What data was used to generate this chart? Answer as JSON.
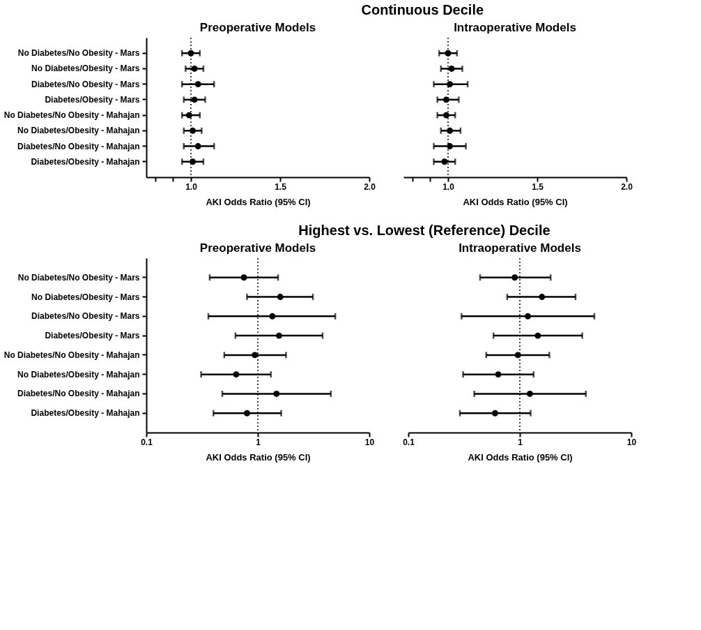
{
  "chart_data": [
    {
      "type": "scatter",
      "orientation": "horizontal",
      "title": "Preoperative Models",
      "annotations": [
        "Continuous Decile"
      ],
      "xlabel": "AKI Odds Ratio (95% CI)",
      "marker": "circle",
      "categories": [
        "No Diabetes/No Obesity - Mars",
        "No Diabetes/Obesity - Mars",
        "Diabetes/No Obesity - Mars",
        "Diabetes/Obesity - Mars",
        "No Diabetes/No Obesity - Mahajan",
        "No Diabetes/Obesity - Mahajan",
        "Diabetes/No Obesity - Mahajan",
        "Diabetes/Obesity - Mahajan"
      ],
      "values": [
        1.0,
        1.02,
        1.04,
        1.02,
        0.99,
        1.01,
        1.04,
        1.01
      ],
      "errors": [
        [
          0.95,
          1.05
        ],
        [
          0.97,
          1.07
        ],
        [
          0.95,
          1.13
        ],
        [
          0.96,
          1.08
        ],
        [
          0.95,
          1.05
        ],
        [
          0.96,
          1.06
        ],
        [
          0.96,
          1.13
        ],
        [
          0.95,
          1.07
        ]
      ],
      "xlim": [
        0.75,
        2.0
      ],
      "xticks": [
        {
          "value": 0.8,
          "label": null
        },
        {
          "value": 0.9,
          "label": null
        },
        {
          "value": 1.0,
          "label": "1.0"
        },
        {
          "value": 1.5,
          "label": "1.5"
        },
        {
          "value": 2.0,
          "label": "2.0"
        }
      ],
      "ref_lines": [
        {
          "axis": "x",
          "value": 1,
          "line_style": "dotted"
        }
      ]
    },
    {
      "type": "scatter",
      "orientation": "horizontal",
      "title": "Intraoperative Models",
      "xlabel": "AKI Odds Ratio (95% CI)",
      "marker": "circle",
      "tick_labels": "x",
      "categories": [
        null,
        null,
        null,
        null,
        null,
        null,
        null,
        null
      ],
      "values": [
        1.0,
        1.02,
        1.01,
        0.99,
        0.99,
        1.01,
        1.01,
        0.98
      ],
      "errors": [
        [
          0.95,
          1.05
        ],
        [
          0.96,
          1.08
        ],
        [
          0.92,
          1.11
        ],
        [
          0.94,
          1.06
        ],
        [
          0.94,
          1.04
        ],
        [
          0.96,
          1.07
        ],
        [
          0.92,
          1.1
        ],
        [
          0.92,
          1.04
        ]
      ],
      "xlim": [
        0.75,
        2.0
      ],
      "xticks": [
        {
          "value": 0.8,
          "label": null
        },
        {
          "value": 0.9,
          "label": null
        },
        {
          "value": 1.0,
          "label": "1.0"
        },
        {
          "value": 1.5,
          "label": "1.5"
        },
        {
          "value": 2.0,
          "label": "2.0"
        }
      ],
      "ref_lines": [
        {
          "axis": "x",
          "value": 1,
          "line_style": "dotted"
        }
      ]
    },
    {
      "type": "scatter",
      "orientation": "horizontal",
      "title": "Preoperative Models",
      "annotations": [
        "Highest vs. Lowest (Reference) Decile"
      ],
      "xlabel": "AKI Odds Ratio (95% CI)",
      "marker": "circle",
      "log": "x",
      "categories": [
        "No Diabetes/No Obesity - Mars",
        "No Diabetes/Obesity - Mars",
        "Diabetes/No Obesity - Mars",
        "Diabetes/Obesity - Mars",
        "No Diabetes/No Obesity - Mahajan",
        "No Diabetes/Obesity - Mahajan",
        "Diabetes/No Obesity - Mahajan",
        "Diabetes/Obesity - Mahajan"
      ],
      "values": [
        0.75,
        1.59,
        1.35,
        1.55,
        0.94,
        0.64,
        1.47,
        0.8
      ],
      "errors": [
        [
          0.37,
          1.52
        ],
        [
          0.8,
          3.12
        ],
        [
          0.36,
          4.95
        ],
        [
          0.63,
          3.81
        ],
        [
          0.5,
          1.79
        ],
        [
          0.31,
          1.31
        ],
        [
          0.48,
          4.52
        ],
        [
          0.4,
          1.62
        ]
      ],
      "xlim": [
        0.1,
        10
      ],
      "xticks": [
        0.1,
        1,
        10
      ],
      "ref_lines": [
        {
          "axis": "x",
          "value": 1,
          "line_style": "dotted"
        }
      ]
    },
    {
      "type": "scatter",
      "orientation": "horizontal",
      "title": "Intraoperative Models",
      "xlabel": "AKI Odds Ratio (95% CI)",
      "marker": "circle",
      "log": "x",
      "tick_labels": "x",
      "categories": [
        null,
        null,
        null,
        null,
        null,
        null,
        null,
        null
      ],
      "values": [
        0.9,
        1.58,
        1.18,
        1.45,
        0.96,
        0.64,
        1.23,
        0.6
      ],
      "errors": [
        [
          0.44,
          1.89
        ],
        [
          0.77,
          3.16
        ],
        [
          0.3,
          4.66
        ],
        [
          0.58,
          3.63
        ],
        [
          0.5,
          1.84
        ],
        [
          0.31,
          1.33
        ],
        [
          0.39,
          3.91
        ],
        [
          0.29,
          1.25
        ]
      ],
      "xlim": [
        0.1,
        10
      ],
      "xticks": [
        0.1,
        1,
        10
      ],
      "ref_lines": [
        {
          "axis": "x",
          "value": 1,
          "line_style": "dotted"
        }
      ]
    }
  ]
}
